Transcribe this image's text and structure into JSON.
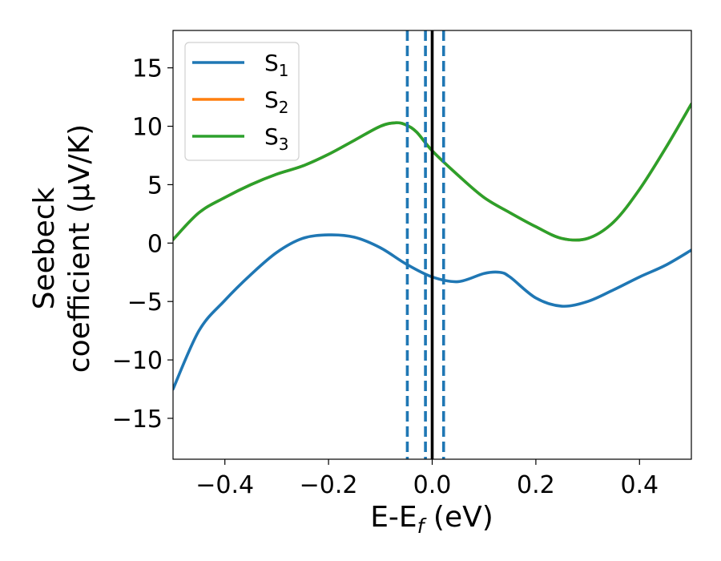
{
  "chart_data": {
    "type": "line",
    "xlabel": "E-E",
    "xlabel_sub": "f",
    "xlabel_unit": " (eV)",
    "ylabel_line1": "Seebeck",
    "ylabel_line2": "coefficient  (μV/K)",
    "xlim": [
      -0.5,
      0.5
    ],
    "ylim": [
      -18.5,
      18.2
    ],
    "xticks": [
      -0.4,
      -0.2,
      0.0,
      0.2,
      0.4
    ],
    "xtick_labels": [
      "−0.4",
      "−0.2",
      "0.0",
      "0.2",
      "0.4"
    ],
    "yticks": [
      -15,
      -10,
      -5,
      0,
      5,
      10,
      15
    ],
    "ytick_labels": [
      "−15",
      "−10",
      "−5",
      "0",
      "5",
      "10",
      "15"
    ],
    "grid": false,
    "legend_position": "top-left",
    "series": [
      {
        "name": "S",
        "sub": "1",
        "color": "#1f77b4",
        "x": [
          -0.5,
          -0.45,
          -0.4,
          -0.35,
          -0.3,
          -0.25,
          -0.2,
          -0.15,
          -0.1,
          -0.05,
          0.0,
          0.05,
          0.1,
          0.13,
          0.15,
          0.2,
          0.25,
          0.3,
          0.35,
          0.4,
          0.45,
          0.5
        ],
        "y": [
          -12.5,
          -7.5,
          -4.9,
          -2.7,
          -0.8,
          0.4,
          0.7,
          0.5,
          -0.4,
          -1.8,
          -2.9,
          -3.3,
          -2.6,
          -2.5,
          -2.9,
          -4.7,
          -5.4,
          -5.0,
          -4.0,
          -2.9,
          -1.9,
          -0.6
        ]
      },
      {
        "name": "S",
        "sub": "2",
        "color": "#ff7f0e",
        "x": [
          -0.5,
          -0.45,
          -0.4,
          -0.35,
          -0.3,
          -0.25,
          -0.2,
          -0.15,
          -0.1,
          -0.07,
          -0.05,
          -0.03,
          0.0,
          0.05,
          0.1,
          0.15,
          0.2,
          0.25,
          0.3,
          0.35,
          0.4,
          0.45,
          0.5
        ],
        "y": [
          0.3,
          2.6,
          3.9,
          5.0,
          5.9,
          6.6,
          7.6,
          8.8,
          10.0,
          10.3,
          10.1,
          9.5,
          7.9,
          5.8,
          3.9,
          2.6,
          1.4,
          0.4,
          0.4,
          1.8,
          4.6,
          8.1,
          11.9
        ]
      },
      {
        "name": "S",
        "sub": "3",
        "color": "#2ca02c",
        "x": [
          -0.5,
          -0.45,
          -0.4,
          -0.35,
          -0.3,
          -0.25,
          -0.2,
          -0.15,
          -0.1,
          -0.07,
          -0.05,
          -0.03,
          0.0,
          0.05,
          0.1,
          0.15,
          0.2,
          0.25,
          0.3,
          0.35,
          0.4,
          0.45,
          0.5
        ],
        "y": [
          0.3,
          2.6,
          3.9,
          5.0,
          5.9,
          6.6,
          7.6,
          8.8,
          10.0,
          10.3,
          10.1,
          9.5,
          7.9,
          5.8,
          3.9,
          2.6,
          1.4,
          0.4,
          0.4,
          1.8,
          4.6,
          8.1,
          11.9
        ]
      }
    ],
    "vlines": [
      {
        "x": 0.0,
        "color": "#000000",
        "style": "solid"
      },
      {
        "x": -0.048,
        "color": "#1f77b4",
        "style": "dashed"
      },
      {
        "x": -0.013,
        "color": "#1f77b4",
        "style": "dashed"
      },
      {
        "x": 0.022,
        "color": "#1f77b4",
        "style": "dashed"
      }
    ]
  }
}
